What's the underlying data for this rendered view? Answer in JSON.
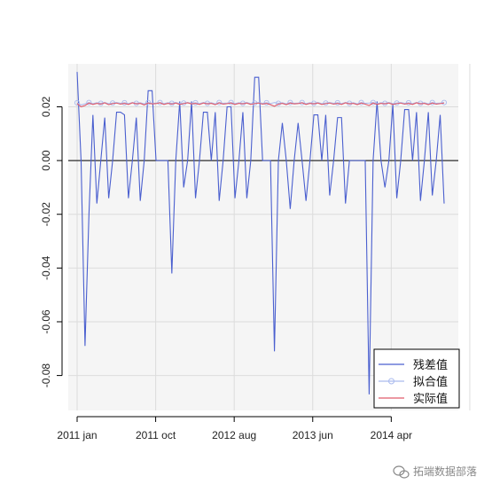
{
  "chart_data": {
    "type": "line",
    "title": "",
    "xlabel": "",
    "ylabel": "",
    "ylim": [
      -0.093,
      0.036
    ],
    "yticks": [
      "0.02",
      "0.00",
      "-0.02",
      "-0.04",
      "-0.06",
      "-0.08"
    ],
    "ytick_values": [
      0.02,
      0.0,
      -0.02,
      -0.04,
      -0.06,
      -0.08
    ],
    "xticks": [
      "2011 jan",
      "2011 oct",
      "2012 aug",
      "2013 jun",
      "2014 apr"
    ],
    "xtick_index": [
      1,
      20.9,
      40.8,
      60.7,
      80.6
    ],
    "x_count": 94,
    "grid": true,
    "legend_position": "bottom-right",
    "hline": 0.0,
    "series": [
      {
        "name": "残差值",
        "color": "#4a5fcf",
        "marker": "none",
        "values": [
          0.033,
          0.0,
          -0.069,
          -0.02,
          0.017,
          -0.016,
          0.0,
          0.016,
          -0.014,
          0.0,
          0.018,
          0.018,
          0.017,
          -0.014,
          0.0,
          0.016,
          -0.015,
          0.0,
          0.026,
          0.026,
          0.0,
          0.0,
          0.0,
          0.0,
          -0.042,
          0.0,
          0.022,
          -0.01,
          0.0,
          0.022,
          -0.014,
          0.0,
          0.018,
          0.018,
          0.0,
          0.018,
          -0.015,
          0.0,
          0.02,
          0.02,
          -0.014,
          0.0,
          0.018,
          -0.014,
          0.0,
          0.031,
          0.031,
          0.0,
          0.0,
          0.0,
          -0.071,
          0.0,
          0.014,
          0.0,
          -0.018,
          0.0,
          0.014,
          0.0,
          -0.015,
          0.0,
          0.017,
          0.017,
          0.0,
          0.017,
          -0.013,
          0.0,
          0.016,
          0.016,
          -0.016,
          0.0,
          0.0,
          0.0,
          0.0,
          0.0,
          -0.087,
          0.0,
          0.022,
          0.0,
          -0.01,
          0.0,
          0.021,
          -0.014,
          0.0,
          0.019,
          0.019,
          0.0,
          0.018,
          -0.015,
          0.0,
          0.018,
          -0.013,
          0.0,
          0.017,
          -0.016
        ]
      },
      {
        "name": "拟合值",
        "color": "#aabbee",
        "marker": "circle",
        "values": [
          0.0215,
          0.0207,
          0.0211,
          0.0216,
          0.0212,
          0.0215,
          0.0213,
          0.0216,
          0.0212,
          0.0214,
          0.0216,
          0.0213,
          0.0215,
          0.0212,
          0.0216,
          0.0213,
          0.0215,
          0.0211,
          0.0216,
          0.0213,
          0.0214,
          0.0216,
          0.0212,
          0.0215,
          0.0213,
          0.0216,
          0.0212,
          0.0214,
          0.0216,
          0.0213,
          0.0215,
          0.0212,
          0.0216,
          0.0213,
          0.0215,
          0.0211,
          0.0216,
          0.0213,
          0.0214,
          0.0216,
          0.0212,
          0.0215,
          0.0213,
          0.0216,
          0.0212,
          0.0214,
          0.0216,
          0.0213,
          0.0215,
          0.0212,
          0.0216,
          0.0213,
          0.0215,
          0.0211,
          0.0216,
          0.0213,
          0.0214,
          0.0216,
          0.0212,
          0.0215,
          0.0213,
          0.0216,
          0.0212,
          0.0214,
          0.0216,
          0.0213,
          0.0215,
          0.0212,
          0.0216,
          0.0213,
          0.0215,
          0.0211,
          0.0216,
          0.0213,
          0.0214,
          0.0216,
          0.0212,
          0.0215,
          0.0213,
          0.0216,
          0.0212,
          0.0214,
          0.0216,
          0.0213,
          0.0215,
          0.0212,
          0.0216,
          0.0213,
          0.0215,
          0.0211,
          0.0216,
          0.0213,
          0.0214,
          0.0216
        ]
      },
      {
        "name": "实际值",
        "color": "#e05a6a",
        "marker": "none",
        "values": [
          0.0212,
          0.02,
          0.0205,
          0.0214,
          0.0209,
          0.0213,
          0.021,
          0.0215,
          0.0208,
          0.0212,
          0.0214,
          0.021,
          0.0213,
          0.0209,
          0.0215,
          0.0211,
          0.0213,
          0.0207,
          0.0214,
          0.0211,
          0.0212,
          0.0215,
          0.0209,
          0.0213,
          0.021,
          0.0214,
          0.0209,
          0.0212,
          0.0215,
          0.0211,
          0.0213,
          0.0209,
          0.0214,
          0.0211,
          0.0213,
          0.0208,
          0.0215,
          0.021,
          0.0212,
          0.0214,
          0.0209,
          0.0213,
          0.0211,
          0.0214,
          0.0209,
          0.0212,
          0.0214,
          0.021,
          0.0213,
          0.0208,
          0.0202,
          0.021,
          0.0213,
          0.0208,
          0.0214,
          0.0211,
          0.0212,
          0.0215,
          0.0209,
          0.0213,
          0.0211,
          0.0214,
          0.0209,
          0.0212,
          0.0214,
          0.021,
          0.0213,
          0.0209,
          0.0215,
          0.0211,
          0.0213,
          0.0208,
          0.0214,
          0.021,
          0.0205,
          0.0214,
          0.0209,
          0.0213,
          0.0211,
          0.0214,
          0.0209,
          0.0212,
          0.0214,
          0.021,
          0.0213,
          0.0209,
          0.0215,
          0.0211,
          0.0213,
          0.0208,
          0.0214,
          0.021,
          0.0212,
          0.0214
        ]
      }
    ]
  },
  "colors": {
    "plot_background": "#f5f5f5",
    "grid": "#dcdcdc",
    "zero_line": "#000000"
  },
  "watermark": {
    "icon": "wechat-logo-icon",
    "text": "拓端数据部落"
  }
}
